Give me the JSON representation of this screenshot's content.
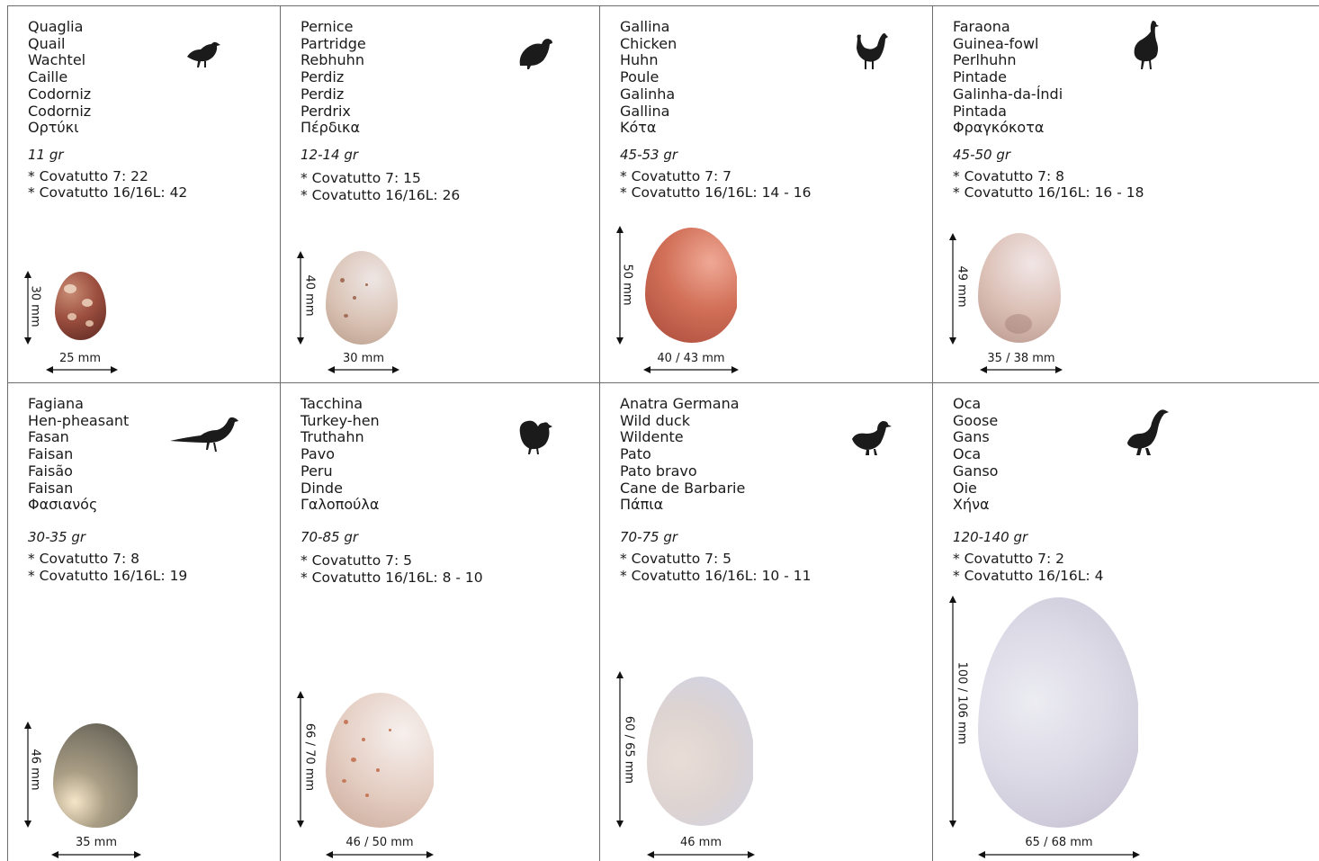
{
  "cards": [
    {
      "names": [
        "Quaglia",
        "Quail",
        "Wachtel",
        "Caille",
        "Codorniz",
        "Codorniz",
        "Ορτύκι"
      ],
      "weight": "11 gr",
      "cov7": "* Covatutto 7: 22",
      "cov16": "* Covatutto 16/16L: 42",
      "height_label": "30 mm",
      "width_label": "25 mm",
      "bird_icon": "quail-silhouette-icon",
      "egg_color": "#9c4f3f"
    },
    {
      "names": [
        "Pernice",
        "Partridge",
        "Rebhuhn",
        "Perdiz",
        "Perdiz",
        "Perdrix",
        "Πέρδικα"
      ],
      "weight": "12-14 gr",
      "cov7": "* Covatutto 7: 15",
      "cov16": "* Covatutto 16/16L: 26",
      "height_label": "40 mm",
      "width_label": "30 mm",
      "bird_icon": "partridge-silhouette-icon",
      "egg_color": "#d9c2b4"
    },
    {
      "names": [
        "Gallina",
        "Chicken",
        "Huhn",
        "Poule",
        "Galinha",
        "Gallina",
        "Κότα"
      ],
      "weight": "45-53 gr",
      "cov7": "* Covatutto 7: 7",
      "cov16": "* Covatutto 16/16L: 14 - 16",
      "height_label": "50 mm",
      "width_label": "40 / 43 mm",
      "bird_icon": "chicken-silhouette-icon",
      "egg_color": "#c9634f"
    },
    {
      "names": [
        "Faraona",
        "Guinea-fowl",
        "Perlhuhn",
        "Pintade",
        "Galinha-da-Índi",
        "Pintada",
        "Φραγκόκοτα"
      ],
      "weight": "45-50 gr",
      "cov7": "* Covatutto 7: 8",
      "cov16": "* Covatutto 16/16L: 16 - 18",
      "height_label": "49 mm",
      "width_label": "35 / 38 mm",
      "bird_icon": "guinea-fowl-silhouette-icon",
      "egg_color": "#d8b9ae"
    },
    {
      "names": [
        "Fagiana",
        "Hen-pheasant",
        "Fasan",
        "Faisan",
        "Faisão",
        "Faisan",
        "Φασιανός"
      ],
      "weight": "30-35 gr",
      "cov7": "* Covatutto 7: 8",
      "cov16": "* Covatutto 16/16L: 19",
      "height_label": "46 mm",
      "width_label": "35 mm",
      "bird_icon": "pheasant-silhouette-icon",
      "egg_color": "#8c8472"
    },
    {
      "names": [
        "Tacchina",
        "Turkey-hen",
        "Truthahn",
        "Pavo",
        "Peru",
        "Dinde",
        "Γαλοπούλα"
      ],
      "weight": "70-85 gr",
      "cov7": "* Covatutto 7: 5",
      "cov16": "* Covatutto 16/16L: 8 - 10",
      "height_label": "66 / 70 mm",
      "width_label": "46 / 50 mm",
      "bird_icon": "turkey-silhouette-icon",
      "egg_color": "#e3cdc1"
    },
    {
      "names": [
        "Anatra Germana",
        "Wild duck",
        "Wildente",
        "Pato",
        "Pato bravo",
        "Cane de Barbarie",
        "Πάπια"
      ],
      "weight": "70-75 gr",
      "cov7": "* Covatutto 7: 5",
      "cov16": "* Covatutto 16/16L: 10 - 11",
      "height_label": "60 / 65 mm",
      "width_label": "46 mm",
      "bird_icon": "duck-silhouette-icon",
      "egg_color": "#ddd8dc"
    },
    {
      "names": [
        "Oca",
        "Goose",
        "Gans",
        "Oca",
        "Ganso",
        "Oie",
        "Χήνα"
      ],
      "weight": "120-140 gr",
      "cov7": "* Covatutto 7: 2",
      "cov16": "* Covatutto 16/16L: 4",
      "height_label": "100 / 106 mm",
      "width_label": "65 / 68 mm",
      "bird_icon": "goose-silhouette-icon",
      "egg_color": "#d9d6e2"
    }
  ]
}
